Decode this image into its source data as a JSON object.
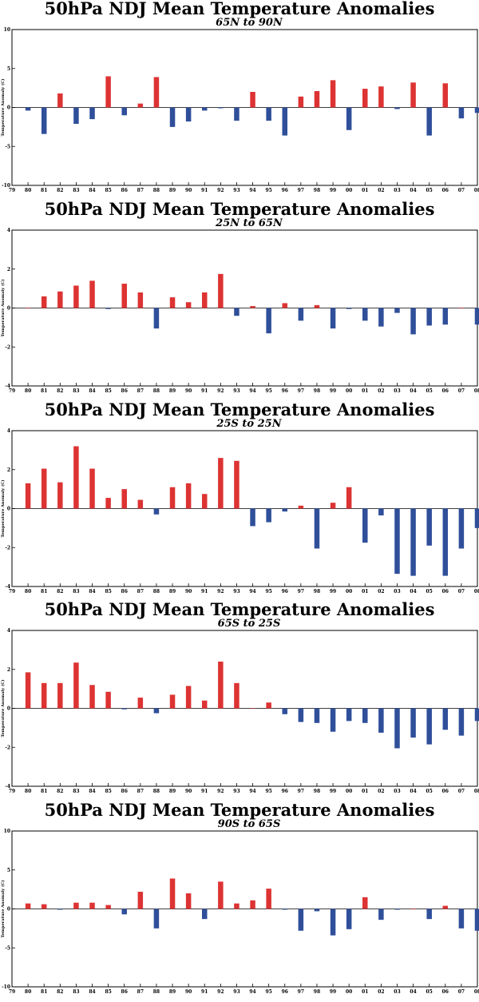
{
  "colors": {
    "positive": "#dd3333",
    "negative": "#2f4f9a",
    "axis": "#000000"
  },
  "chart_data": [
    {
      "type": "bar",
      "title": "50hPa NDJ Mean Temperature Anomalies",
      "subtitle": "65N to 90N",
      "ylabel": "Temperature Anomaly (C)",
      "ylim": [
        -10,
        10
      ],
      "yticks": [
        -10,
        -5,
        0,
        5,
        10
      ],
      "xticks": [
        "79",
        "80",
        "81",
        "82",
        "83",
        "84",
        "85",
        "86",
        "87",
        "88",
        "89",
        "90",
        "91",
        "92",
        "93",
        "94",
        "95",
        "96",
        "97",
        "98",
        "99",
        "00",
        "01",
        "02",
        "03",
        "04",
        "05",
        "06",
        "07",
        "08"
      ],
      "categories": [
        "80",
        "81",
        "82",
        "83",
        "84",
        "85",
        "86",
        "87",
        "88",
        "89",
        "90",
        "91",
        "92",
        "93",
        "94",
        "95",
        "96",
        "97",
        "98",
        "99",
        "00",
        "01",
        "02",
        "03",
        "04",
        "05",
        "06",
        "07",
        "08"
      ],
      "values": [
        -0.4,
        -3.4,
        1.8,
        -2.1,
        -1.5,
        4.0,
        -1.0,
        0.5,
        3.9,
        -2.5,
        -1.8,
        -0.4,
        -0.1,
        -1.7,
        2.0,
        -1.7,
        -3.6,
        1.4,
        2.1,
        3.5,
        -2.9,
        2.4,
        2.7,
        -0.2,
        3.2,
        -3.6,
        3.1,
        -1.4,
        -0.7
      ]
    },
    {
      "type": "bar",
      "title": "50hPa NDJ Mean Temperature Anomalies",
      "subtitle": "25N to 65N",
      "ylabel": "Temperature Anomaly (C)",
      "ylim": [
        -4,
        4
      ],
      "yticks": [
        -4,
        -2,
        0,
        2,
        4
      ],
      "xticks": [
        "79",
        "80",
        "81",
        "82",
        "83",
        "84",
        "85",
        "86",
        "87",
        "88",
        "89",
        "90",
        "91",
        "92",
        "93",
        "94",
        "95",
        "96",
        "97",
        "98",
        "99",
        "00",
        "01",
        "02",
        "03",
        "04",
        "05",
        "06",
        "07",
        "08"
      ],
      "categories": [
        "80",
        "81",
        "82",
        "83",
        "84",
        "85",
        "86",
        "87",
        "88",
        "89",
        "90",
        "91",
        "92",
        "93",
        "94",
        "95",
        "96",
        "97",
        "98",
        "99",
        "00",
        "01",
        "02",
        "03",
        "04",
        "05",
        "06",
        "07",
        "08"
      ],
      "values": [
        0.0,
        0.6,
        0.85,
        1.15,
        1.4,
        -0.05,
        1.25,
        0.8,
        -1.05,
        0.55,
        0.3,
        0.8,
        1.75,
        -0.4,
        0.1,
        -1.3,
        0.25,
        -0.65,
        0.15,
        -1.05,
        -0.05,
        -0.65,
        -0.95,
        -0.25,
        -1.35,
        -0.9,
        -0.85,
        0.0,
        -0.85
      ]
    },
    {
      "type": "bar",
      "title": "50hPa NDJ Mean Temperature Anomalies",
      "subtitle": "25S to 25N",
      "ylabel": "Temperature Anomaly (C)",
      "ylim": [
        -4,
        4
      ],
      "yticks": [
        -4,
        -2,
        0,
        2,
        4
      ],
      "xticks": [
        "79",
        "80",
        "81",
        "82",
        "83",
        "84",
        "85",
        "86",
        "87",
        "88",
        "89",
        "90",
        "91",
        "92",
        "93",
        "94",
        "95",
        "96",
        "97",
        "98",
        "99",
        "00",
        "01",
        "02",
        "03",
        "04",
        "05",
        "06",
        "07",
        "08"
      ],
      "categories": [
        "80",
        "81",
        "82",
        "83",
        "84",
        "85",
        "86",
        "87",
        "88",
        "89",
        "90",
        "91",
        "92",
        "93",
        "94",
        "95",
        "96",
        "97",
        "98",
        "99",
        "00",
        "01",
        "02",
        "03",
        "04",
        "05",
        "06",
        "07",
        "08"
      ],
      "values": [
        1.3,
        2.05,
        1.35,
        3.2,
        2.05,
        0.55,
        1.0,
        0.45,
        -0.3,
        1.1,
        1.3,
        0.75,
        2.6,
        2.45,
        -0.9,
        -0.7,
        -0.15,
        0.15,
        -2.05,
        0.3,
        1.1,
        -1.75,
        -0.35,
        -3.35,
        -3.45,
        -1.9,
        -3.45,
        -2.05,
        -1.0
      ]
    },
    {
      "type": "bar",
      "title": "50hPa NDJ Mean Temperature Anomalies",
      "subtitle": "65S to 25S",
      "ylabel": "Temperature Anomaly (C)",
      "ylim": [
        -4,
        4
      ],
      "yticks": [
        -4,
        -2,
        0,
        2,
        4
      ],
      "xticks": [
        "79",
        "80",
        "81",
        "82",
        "83",
        "84",
        "85",
        "86",
        "87",
        "88",
        "89",
        "90",
        "91",
        "92",
        "93",
        "94",
        "95",
        "96",
        "97",
        "98",
        "99",
        "00",
        "01",
        "02",
        "03",
        "04",
        "05",
        "06",
        "07",
        "08"
      ],
      "categories": [
        "80",
        "81",
        "82",
        "83",
        "84",
        "85",
        "86",
        "87",
        "88",
        "89",
        "90",
        "91",
        "92",
        "93",
        "94",
        "95",
        "96",
        "97",
        "98",
        "99",
        "00",
        "01",
        "02",
        "03",
        "04",
        "05",
        "06",
        "07",
        "08"
      ],
      "values": [
        1.85,
        1.3,
        1.3,
        2.35,
        1.2,
        0.85,
        -0.05,
        0.55,
        -0.25,
        0.7,
        1.15,
        0.4,
        2.4,
        1.3,
        0.0,
        0.3,
        -0.3,
        -0.7,
        -0.75,
        -1.2,
        -0.65,
        -0.75,
        -1.25,
        -2.05,
        -1.5,
        -1.85,
        -1.1,
        -1.4,
        -0.65
      ]
    },
    {
      "type": "bar",
      "title": "50hPa NDJ Mean Temperature Anomalies",
      "subtitle": "90S to 65S",
      "ylabel": "Temperature Anomaly (C)",
      "ylim": [
        -10,
        10
      ],
      "yticks": [
        -10,
        -5,
        0,
        5,
        10
      ],
      "xticks": [
        "79",
        "80",
        "81",
        "82",
        "83",
        "84",
        "85",
        "86",
        "87",
        "88",
        "89",
        "90",
        "91",
        "92",
        "93",
        "94",
        "95",
        "96",
        "97",
        "98",
        "99",
        "00",
        "01",
        "02",
        "03",
        "04",
        "05",
        "06",
        "07",
        "08"
      ],
      "categories": [
        "80",
        "81",
        "82",
        "83",
        "84",
        "85",
        "86",
        "87",
        "88",
        "89",
        "90",
        "91",
        "92",
        "93",
        "94",
        "95",
        "96",
        "97",
        "98",
        "99",
        "00",
        "01",
        "02",
        "03",
        "04",
        "05",
        "06",
        "07",
        "08"
      ],
      "values": [
        0.7,
        0.6,
        -0.1,
        0.8,
        0.8,
        0.5,
        -0.7,
        2.2,
        -2.5,
        3.9,
        2.0,
        -1.3,
        3.5,
        0.7,
        1.1,
        2.6,
        -0.1,
        -2.8,
        -0.3,
        -3.4,
        -2.6,
        1.5,
        -1.4,
        -0.1,
        0.0,
        -1.3,
        0.4,
        -2.5,
        -2.8
      ]
    }
  ]
}
